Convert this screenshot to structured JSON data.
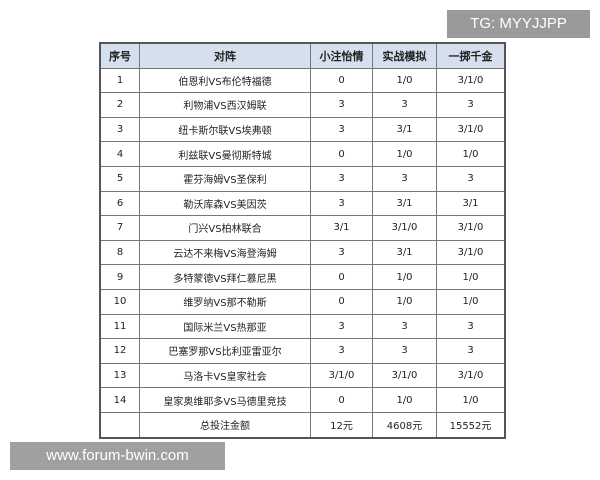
{
  "headers": [
    "序号",
    "对阵",
    "小注怡情",
    "实战模拟",
    "一掷千金"
  ],
  "rows": [
    [
      "1",
      "伯恩利VS布伦特福德",
      "0",
      "1/0",
      "3/1/0"
    ],
    [
      "2",
      "利物浦VS西汉姆联",
      "3",
      "3",
      "3"
    ],
    [
      "3",
      "纽卡斯尔联VS埃弗顿",
      "3",
      "3/1",
      "3/1/0"
    ],
    [
      "4",
      "利兹联VS曼彻斯特城",
      "0",
      "1/0",
      "1/0"
    ],
    [
      "5",
      "霍芬海姆VS圣保利",
      "3",
      "3",
      "3"
    ],
    [
      "6",
      "勒沃库森VS美因茨",
      "3",
      "3/1",
      "3/1"
    ],
    [
      "7",
      "门兴VS柏林联合",
      "3/1",
      "3/1/0",
      "3/1/0"
    ],
    [
      "8",
      "云达不来梅VS海登海姆",
      "3",
      "3/1",
      "3/1/0"
    ],
    [
      "9",
      "多特蒙德VS拜仁慕尼黑",
      "0",
      "1/0",
      "1/0"
    ],
    [
      "10",
      "维罗纳VS那不勒斯",
      "0",
      "1/0",
      "1/0"
    ],
    [
      "11",
      "国际米兰VS热那亚",
      "3",
      "3",
      "3"
    ],
    [
      "12",
      "巴塞罗那VS比利亚雷亚尔",
      "3",
      "3",
      "3"
    ],
    [
      "13",
      "马洛卡VS皇家社会",
      "3/1/0",
      "3/1/0",
      "3/1/0"
    ],
    [
      "14",
      "皇家奥维耶多VS马德里竞技",
      "0",
      "1/0",
      "1/0"
    ]
  ],
  "total": {
    "label": "总投注金额",
    "values": [
      "12元",
      "4608元",
      "15552元"
    ]
  },
  "watermarks": {
    "tg": "TG: MYYJJPP",
    "forum": "www.forum-bwin.com"
  }
}
